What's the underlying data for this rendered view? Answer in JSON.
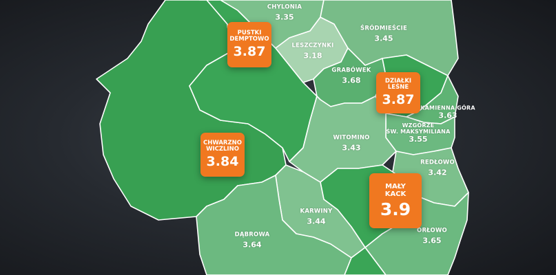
{
  "districts": {
    "chylonia": {
      "name": "CHYLONIA",
      "value": "3.35"
    },
    "srodmiescie": {
      "name": "ŚRÓDMIEŚCIE",
      "value": "3.45"
    },
    "leszczynki": {
      "name": "LESZCZYNKI",
      "value": "3.18"
    },
    "grabowek": {
      "name": "GRABÓWEK",
      "value": "3.68"
    },
    "kamienna_gora": {
      "name": "KAMIENNA GÓRA",
      "value": "3.63"
    },
    "wzgorze": {
      "name_line1": "WZGÓRZE",
      "name_line2": "ŚW. MAKSYMILIANA",
      "value": "3.55"
    },
    "witomino": {
      "name": "WITOMINO",
      "value": "3.43"
    },
    "redlowo": {
      "name": "REDŁOWO",
      "value": "3.42"
    },
    "karwiny": {
      "name": "KARWINY",
      "value": "3.44"
    },
    "dabrowa": {
      "name": "DĄBROWA",
      "value": "3.64"
    },
    "orlowo": {
      "name": "ORŁOWO",
      "value": "3.65"
    }
  },
  "highlights": {
    "pustki": {
      "name_line1": "PUSTKI",
      "name_line2": "DEMPTOWO",
      "value": "3.87"
    },
    "dzialki": {
      "name_line1": "DZIAŁKI",
      "name_line2": "LEŚNE",
      "value": "3.87"
    },
    "chwarzno": {
      "name_line1": "CHWARZNO",
      "name_line2": "WICZLINO",
      "value": "3.84"
    },
    "maly_kack": {
      "name_line1": "MAŁY",
      "name_line2": "KACK",
      "value": "3.9"
    }
  },
  "colors": {
    "highlight_badge": "#f07820",
    "district_border": "#ffffff",
    "background": "#262a30"
  }
}
